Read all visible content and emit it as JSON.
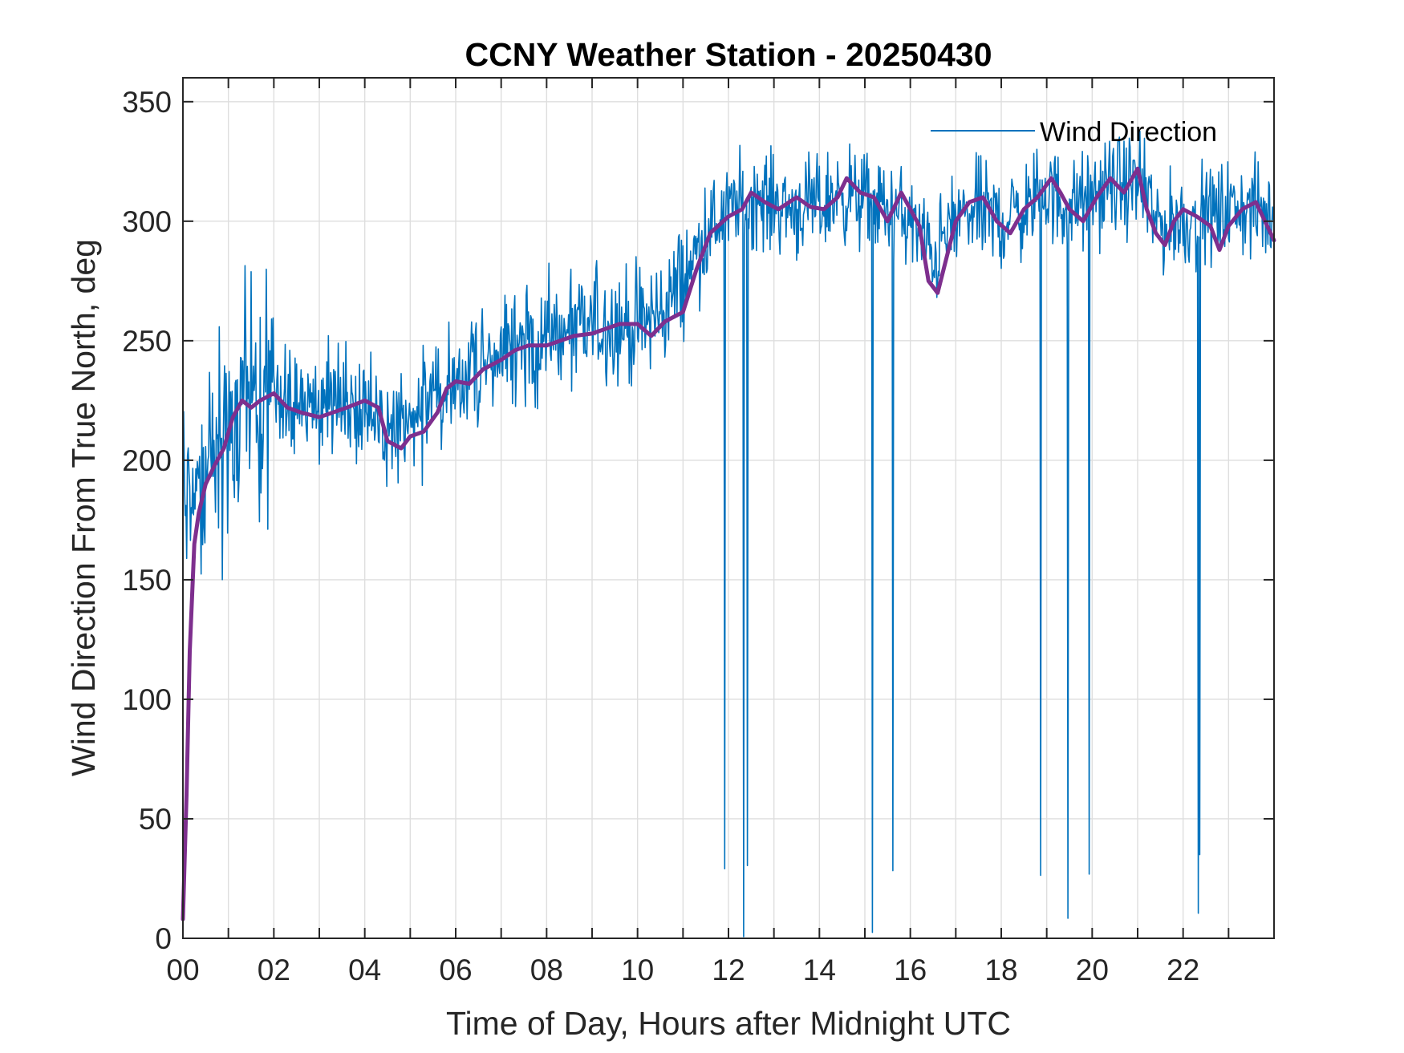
{
  "chart_data": {
    "type": "line",
    "title": "CCNY Weather Station - 20250430",
    "xlabel": "Time of Day, Hours after Midnight UTC",
    "ylabel": "Wind Direction From True North, deg",
    "xlim": [
      0,
      24
    ],
    "ylim": [
      0,
      360
    ],
    "grid": true,
    "legend_position": "top-right",
    "x_ticks": [
      0,
      2,
      4,
      6,
      8,
      10,
      12,
      14,
      16,
      18,
      20,
      22
    ],
    "x_tick_labels": [
      "00",
      "02",
      "04",
      "06",
      "08",
      "10",
      "12",
      "14",
      "16",
      "18",
      "20",
      "22"
    ],
    "y_ticks": [
      0,
      50,
      100,
      150,
      200,
      250,
      300,
      350
    ],
    "y_tick_labels": [
      "0",
      "50",
      "100",
      "150",
      "200",
      "250",
      "300",
      "350"
    ],
    "series": [
      {
        "name": "Wind Direction",
        "color": "#0072BD",
        "style": "thin raw samples every ~1 minute (noisy)",
        "x": [
          0,
          0.5,
          1.0,
          1.5,
          2.0,
          2.5,
          3.0,
          3.5,
          4.0,
          4.5,
          5.0,
          5.5,
          6.0,
          6.5,
          7.0,
          7.5,
          8.0,
          8.5,
          9.0,
          9.5,
          10.0,
          10.5,
          11.0,
          11.5,
          12.0,
          12.5,
          13.0,
          13.5,
          14.0,
          14.5,
          15.0,
          15.5,
          16.0,
          16.5,
          17.0,
          17.5,
          18.0,
          18.5,
          19.0,
          19.5,
          20.0,
          20.5,
          21.0,
          21.5,
          22.0,
          22.5,
          23.0,
          23.5,
          24.0
        ],
        "y": [
          175,
          200,
          215,
          225,
          228,
          222,
          220,
          220,
          222,
          210,
          215,
          228,
          230,
          240,
          245,
          248,
          250,
          252,
          256,
          258,
          255,
          262,
          275,
          295,
          305,
          310,
          308,
          305,
          306,
          312,
          308,
          305,
          300,
          285,
          300,
          305,
          300,
          305,
          312,
          305,
          310,
          315,
          315,
          298,
          300,
          302,
          305,
          305,
          300
        ]
      },
      {
        "name": "",
        "color": "#7E2F8E",
        "style": "thick smoothed running mean",
        "x": [
          0,
          0.08,
          0.15,
          0.25,
          0.35,
          0.5,
          0.7,
          0.9,
          1.1,
          1.3,
          1.5,
          1.7,
          2.0,
          2.3,
          2.6,
          3.0,
          3.3,
          3.6,
          4.0,
          4.3,
          4.5,
          4.8,
          5.0,
          5.3,
          5.6,
          5.8,
          6.0,
          6.3,
          6.6,
          7.0,
          7.3,
          7.6,
          8.0,
          8.3,
          8.6,
          9.0,
          9.3,
          9.6,
          10.0,
          10.3,
          10.6,
          11.0,
          11.3,
          11.6,
          12.0,
          12.3,
          12.5,
          12.8,
          13.1,
          13.5,
          13.8,
          14.1,
          14.4,
          14.6,
          14.9,
          15.2,
          15.5,
          15.8,
          16.0,
          16.2,
          16.4,
          16.6,
          16.8,
          17.0,
          17.3,
          17.6,
          17.9,
          18.2,
          18.5,
          18.8,
          19.1,
          19.3,
          19.5,
          19.8,
          20.1,
          20.4,
          20.7,
          21.0,
          21.2,
          21.4,
          21.6,
          21.8,
          22.0,
          22.3,
          22.6,
          22.8,
          23.0,
          23.3,
          23.6,
          23.8,
          24.0
        ],
        "y": [
          8,
          60,
          120,
          165,
          178,
          190,
          198,
          205,
          218,
          225,
          222,
          225,
          228,
          222,
          220,
          218,
          220,
          222,
          225,
          222,
          208,
          205,
          210,
          212,
          220,
          230,
          233,
          232,
          238,
          242,
          246,
          248,
          248,
          250,
          252,
          253,
          255,
          257,
          257,
          252,
          258,
          262,
          280,
          295,
          302,
          305,
          312,
          308,
          305,
          310,
          306,
          305,
          310,
          318,
          312,
          310,
          300,
          312,
          305,
          298,
          275,
          270,
          285,
          300,
          308,
          310,
          300,
          295,
          305,
          310,
          318,
          312,
          305,
          300,
          310,
          318,
          312,
          322,
          305,
          295,
          290,
          300,
          305,
          302,
          298,
          288,
          298,
          305,
          308,
          300,
          292
        ]
      }
    ]
  }
}
